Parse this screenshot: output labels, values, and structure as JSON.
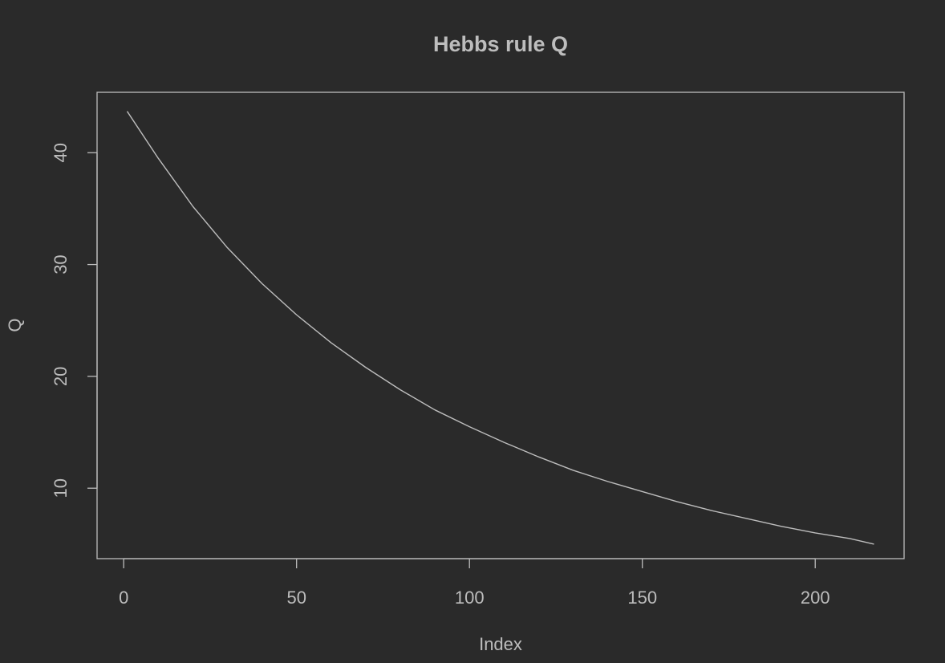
{
  "theme": {
    "background": "#2a2a2a",
    "foreground": "#bdbdbd",
    "line_color": "#bdbdbd"
  },
  "chart_data": {
    "type": "line",
    "title": "Hebbs rule Q",
    "xlabel": "Index",
    "ylabel": "Q",
    "xlim": [
      -7.7,
      225.7
    ],
    "ylim": [
      3.7,
      45.4
    ],
    "x_ticks": [
      0,
      50,
      100,
      150,
      200
    ],
    "y_ticks": [
      10,
      20,
      30,
      40
    ],
    "grid": false,
    "legend": "none",
    "series": [
      {
        "x": [
          1,
          10,
          20,
          30,
          40,
          50,
          60,
          70,
          80,
          90,
          100,
          110,
          120,
          130,
          140,
          150,
          160,
          170,
          180,
          190,
          200,
          210,
          217
        ],
        "values": [
          43.7,
          39.5,
          35.2,
          31.5,
          28.3,
          25.5,
          23.0,
          20.8,
          18.8,
          17.0,
          15.5,
          14.1,
          12.8,
          11.6,
          10.6,
          9.7,
          8.8,
          8.0,
          7.3,
          6.6,
          6.0,
          5.5,
          5.0
        ]
      }
    ]
  }
}
